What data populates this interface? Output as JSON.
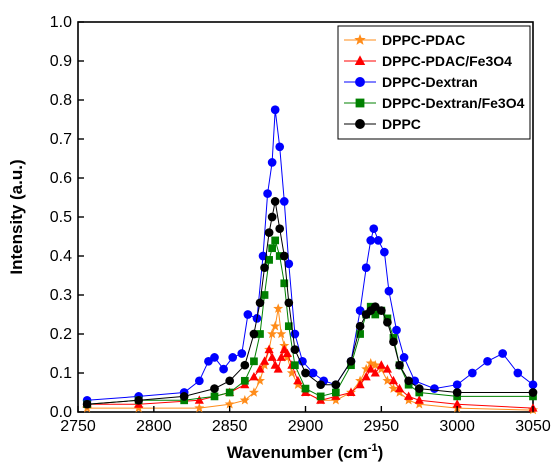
{
  "chart_data": {
    "type": "line",
    "xlabel": "Wavenumber (cm",
    "xlabel_sup": "-1",
    "xlabel_close": ")",
    "ylabel": "Intensity (a.u.)",
    "xlim": [
      2750,
      3050
    ],
    "ylim": [
      0.0,
      1.0
    ],
    "xticks": [
      "2750",
      "2800",
      "2850",
      "2900",
      "2950",
      "3000",
      "3050"
    ],
    "yticks": [
      "0.0",
      "0.1",
      "0.2",
      "0.3",
      "0.4",
      "0.5",
      "0.6",
      "0.7",
      "0.8",
      "0.9",
      "1.0"
    ],
    "legend_position": "top-right",
    "series": [
      {
        "name": "DPPC-PDAC",
        "color": "#ff8c1a",
        "marker": "star",
        "points": [
          [
            2756,
            0.01
          ],
          [
            2790,
            0.01
          ],
          [
            2830,
            0.01
          ],
          [
            2850,
            0.02
          ],
          [
            2860,
            0.03
          ],
          [
            2866,
            0.05
          ],
          [
            2870,
            0.08
          ],
          [
            2873,
            0.12
          ],
          [
            2876,
            0.16
          ],
          [
            2878,
            0.2
          ],
          [
            2880,
            0.22
          ],
          [
            2882,
            0.265
          ],
          [
            2884,
            0.2
          ],
          [
            2886,
            0.17
          ],
          [
            2888,
            0.14
          ],
          [
            2891,
            0.1
          ],
          [
            2895,
            0.07
          ],
          [
            2900,
            0.05
          ],
          [
            2910,
            0.03
          ],
          [
            2920,
            0.03
          ],
          [
            2930,
            0.05
          ],
          [
            2936,
            0.08
          ],
          [
            2940,
            0.11
          ],
          [
            2943,
            0.125
          ],
          [
            2946,
            0.12
          ],
          [
            2950,
            0.11
          ],
          [
            2954,
            0.08
          ],
          [
            2958,
            0.06
          ],
          [
            2962,
            0.05
          ],
          [
            2968,
            0.03
          ],
          [
            2975,
            0.02
          ],
          [
            3000,
            0.01
          ],
          [
            3050,
            0.005
          ]
        ]
      },
      {
        "name": "DPPC-PDAC/Fe3O4",
        "color": "#ff0000",
        "marker": "triangle",
        "points": [
          [
            2756,
            0.02
          ],
          [
            2790,
            0.02
          ],
          [
            2830,
            0.03
          ],
          [
            2850,
            0.05
          ],
          [
            2860,
            0.07
          ],
          [
            2866,
            0.09
          ],
          [
            2870,
            0.11
          ],
          [
            2873,
            0.13
          ],
          [
            2876,
            0.16
          ],
          [
            2878,
            0.14
          ],
          [
            2880,
            0.12
          ],
          [
            2882,
            0.11
          ],
          [
            2884,
            0.14
          ],
          [
            2886,
            0.16
          ],
          [
            2888,
            0.15
          ],
          [
            2891,
            0.12
          ],
          [
            2895,
            0.08
          ],
          [
            2900,
            0.05
          ],
          [
            2910,
            0.03
          ],
          [
            2920,
            0.04
          ],
          [
            2930,
            0.05
          ],
          [
            2936,
            0.07
          ],
          [
            2940,
            0.09
          ],
          [
            2943,
            0.11
          ],
          [
            2946,
            0.1
          ],
          [
            2950,
            0.12
          ],
          [
            2954,
            0.11
          ],
          [
            2958,
            0.08
          ],
          [
            2962,
            0.06
          ],
          [
            2968,
            0.04
          ],
          [
            2975,
            0.03
          ],
          [
            3000,
            0.02
          ],
          [
            3050,
            0.01
          ]
        ]
      },
      {
        "name": "DPPC-Dextran",
        "color": "#0000ff",
        "marker": "circle",
        "points": [
          [
            2756,
            0.03
          ],
          [
            2790,
            0.04
          ],
          [
            2820,
            0.05
          ],
          [
            2830,
            0.08
          ],
          [
            2836,
            0.13
          ],
          [
            2840,
            0.14
          ],
          [
            2846,
            0.11
          ],
          [
            2852,
            0.14
          ],
          [
            2858,
            0.15
          ],
          [
            2862,
            0.25
          ],
          [
            2868,
            0.24
          ],
          [
            2872,
            0.4
          ],
          [
            2875,
            0.56
          ],
          [
            2878,
            0.64
          ],
          [
            2880,
            0.775
          ],
          [
            2883,
            0.68
          ],
          [
            2886,
            0.54
          ],
          [
            2889,
            0.38
          ],
          [
            2893,
            0.2
          ],
          [
            2898,
            0.13
          ],
          [
            2905,
            0.1
          ],
          [
            2912,
            0.08
          ],
          [
            2920,
            0.07
          ],
          [
            2930,
            0.13
          ],
          [
            2936,
            0.26
          ],
          [
            2940,
            0.37
          ],
          [
            2943,
            0.44
          ],
          [
            2945,
            0.47
          ],
          [
            2948,
            0.44
          ],
          [
            2952,
            0.41
          ],
          [
            2955,
            0.31
          ],
          [
            2960,
            0.21
          ],
          [
            2965,
            0.14
          ],
          [
            2972,
            0.08
          ],
          [
            2985,
            0.06
          ],
          [
            3000,
            0.07
          ],
          [
            3010,
            0.1
          ],
          [
            3020,
            0.13
          ],
          [
            3030,
            0.15
          ],
          [
            3040,
            0.1
          ],
          [
            3050,
            0.07
          ]
        ]
      },
      {
        "name": "DPPC-Dextran/Fe3O4",
        "color": "#008000",
        "marker": "square",
        "points": [
          [
            2756,
            0.02
          ],
          [
            2790,
            0.03
          ],
          [
            2820,
            0.03
          ],
          [
            2840,
            0.04
          ],
          [
            2850,
            0.05
          ],
          [
            2860,
            0.08
          ],
          [
            2866,
            0.13
          ],
          [
            2870,
            0.2
          ],
          [
            2873,
            0.3
          ],
          [
            2876,
            0.39
          ],
          [
            2878,
            0.42
          ],
          [
            2880,
            0.44
          ],
          [
            2883,
            0.4
          ],
          [
            2886,
            0.33
          ],
          [
            2889,
            0.22
          ],
          [
            2893,
            0.12
          ],
          [
            2900,
            0.06
          ],
          [
            2910,
            0.04
          ],
          [
            2920,
            0.05
          ],
          [
            2930,
            0.12
          ],
          [
            2936,
            0.2
          ],
          [
            2940,
            0.25
          ],
          [
            2943,
            0.27
          ],
          [
            2946,
            0.25
          ],
          [
            2950,
            0.26
          ],
          [
            2954,
            0.24
          ],
          [
            2958,
            0.19
          ],
          [
            2962,
            0.12
          ],
          [
            2968,
            0.07
          ],
          [
            2975,
            0.05
          ],
          [
            3000,
            0.04
          ],
          [
            3050,
            0.04
          ]
        ]
      },
      {
        "name": "DPPC",
        "color": "#000000",
        "marker": "circle",
        "points": [
          [
            2756,
            0.02
          ],
          [
            2790,
            0.03
          ],
          [
            2820,
            0.04
          ],
          [
            2840,
            0.06
          ],
          [
            2850,
            0.08
          ],
          [
            2860,
            0.12
          ],
          [
            2866,
            0.2
          ],
          [
            2870,
            0.28
          ],
          [
            2873,
            0.37
          ],
          [
            2876,
            0.46
          ],
          [
            2878,
            0.5
          ],
          [
            2880,
            0.54
          ],
          [
            2883,
            0.47
          ],
          [
            2886,
            0.4
          ],
          [
            2889,
            0.28
          ],
          [
            2893,
            0.16
          ],
          [
            2900,
            0.1
          ],
          [
            2910,
            0.07
          ],
          [
            2920,
            0.07
          ],
          [
            2930,
            0.13
          ],
          [
            2936,
            0.22
          ],
          [
            2940,
            0.25
          ],
          [
            2943,
            0.26
          ],
          [
            2946,
            0.27
          ],
          [
            2950,
            0.26
          ],
          [
            2954,
            0.23
          ],
          [
            2958,
            0.18
          ],
          [
            2962,
            0.12
          ],
          [
            2968,
            0.08
          ],
          [
            2975,
            0.06
          ],
          [
            3000,
            0.05
          ],
          [
            3050,
            0.05
          ]
        ]
      }
    ]
  }
}
